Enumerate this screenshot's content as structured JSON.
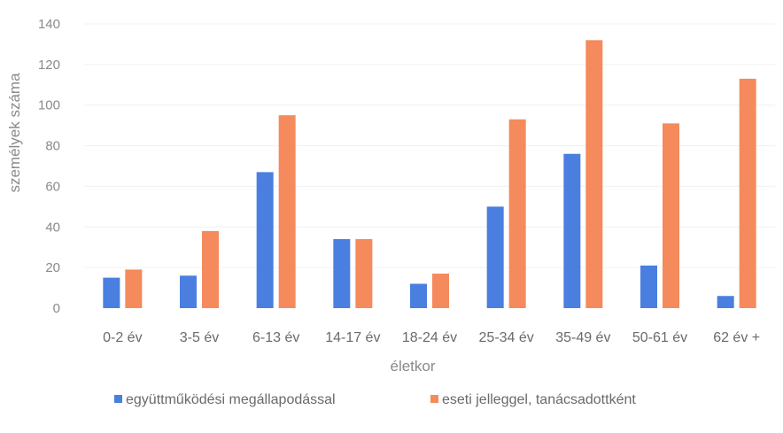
{
  "chart_data": {
    "type": "bar",
    "title": "",
    "xlabel": "életkor",
    "ylabel": "személyek száma",
    "ylim": [
      0,
      140
    ],
    "yticks": [
      0,
      20,
      40,
      60,
      80,
      100,
      120,
      140
    ],
    "grid": true,
    "legend_position": "bottom",
    "categories": [
      "0-2 év",
      "3-5 év",
      "6-13 év",
      "14-17 év",
      "18-24 év",
      "25-34 év",
      "35-49 év",
      "50-61 év",
      "62 év +"
    ],
    "series": [
      {
        "name": "együttműködési megállapodással",
        "color": "#4a7fe0",
        "values": [
          15,
          16,
          67,
          34,
          12,
          50,
          76,
          21,
          6
        ]
      },
      {
        "name": "eseti jelleggel, tanácsadottként",
        "color": "#f58a5c",
        "values": [
          19,
          38,
          95,
          34,
          17,
          93,
          132,
          91,
          113
        ]
      }
    ]
  }
}
